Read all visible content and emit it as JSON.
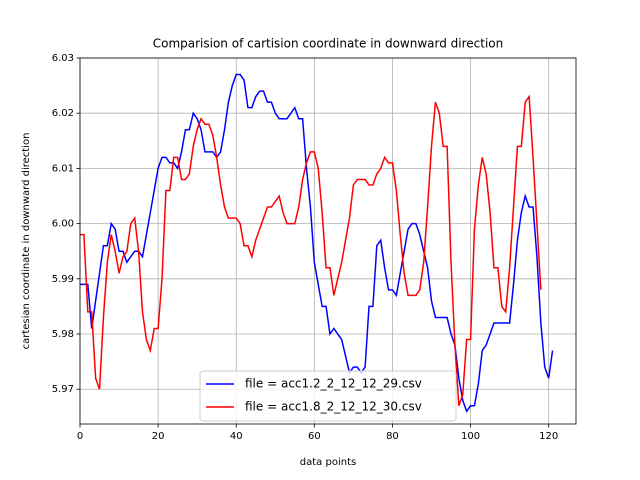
{
  "chart_data": {
    "type": "line",
    "title": "Comparision of cartision coordinate in downward direction",
    "x_label": "data points",
    "y_label": "cartesian coordinate in downward direction",
    "xlim": [
      0,
      127
    ],
    "ylim": [
      5.9637,
      6.03
    ],
    "xticks": [
      0,
      20,
      40,
      60,
      80,
      100,
      120
    ],
    "yticks": [
      5.97,
      5.98,
      5.99,
      {
        "value": 6.0,
        "label": "6.00"
      },
      6.01,
      6.02,
      6.03
    ],
    "grid": true,
    "legend": "lower center",
    "series": [
      {
        "name": "file = acc1.2_2_12_12_29.csv",
        "color": "#0000ff",
        "x": [
          0,
          1,
          2,
          3,
          4,
          5,
          6,
          7,
          8,
          9,
          10,
          11,
          12,
          13,
          14,
          15,
          16,
          17,
          18,
          19,
          20,
          21,
          22,
          23,
          24,
          25,
          26,
          27,
          28,
          29,
          30,
          31,
          32,
          33,
          34,
          35,
          36,
          37,
          38,
          39,
          40,
          41,
          42,
          43,
          44,
          45,
          46,
          47,
          48,
          49,
          50,
          51,
          52,
          53,
          54,
          55,
          56,
          57,
          58,
          59,
          60,
          61,
          62,
          63,
          64,
          65,
          66,
          67,
          68,
          69,
          70,
          71,
          72,
          73,
          74,
          75,
          76,
          77,
          78,
          79,
          80,
          81,
          82,
          83,
          84,
          85,
          86,
          87,
          88,
          89,
          90,
          91,
          92,
          93,
          94,
          95,
          96,
          97,
          98,
          99,
          100,
          101,
          102,
          103,
          104,
          105,
          106,
          107,
          108,
          109,
          110,
          111,
          112,
          113,
          114,
          115,
          116,
          117,
          118,
          119,
          120,
          121
        ],
        "values": [
          5.989,
          5.989,
          5.989,
          5.981,
          5.986,
          5.991,
          5.996,
          5.996,
          6.0,
          5.999,
          5.995,
          5.995,
          5.993,
          5.994,
          5.995,
          5.995,
          5.994,
          5.998,
          6.002,
          6.006,
          6.01,
          6.012,
          6.012,
          6.011,
          6.011,
          6.01,
          6.013,
          6.017,
          6.017,
          6.02,
          6.019,
          6.017,
          6.013,
          6.013,
          6.013,
          6.012,
          6.013,
          6.017,
          6.022,
          6.025,
          6.027,
          6.027,
          6.026,
          6.021,
          6.021,
          6.023,
          6.024,
          6.024,
          6.022,
          6.022,
          6.02,
          6.019,
          6.019,
          6.019,
          6.02,
          6.021,
          6.019,
          6.019,
          6.01,
          6.003,
          5.993,
          5.989,
          5.985,
          5.985,
          5.98,
          5.981,
          5.98,
          5.979,
          5.976,
          5.973,
          5.974,
          5.974,
          5.973,
          5.974,
          5.985,
          5.985,
          5.996,
          5.997,
          5.992,
          5.988,
          5.988,
          5.987,
          5.991,
          5.995,
          5.999,
          6.0,
          6.0,
          5.998,
          5.995,
          5.992,
          5.986,
          5.983,
          5.983,
          5.983,
          5.983,
          5.98,
          5.978,
          5.972,
          5.968,
          5.966,
          5.967,
          5.967,
          5.971,
          5.977,
          5.978,
          5.98,
          5.982,
          5.982,
          5.982,
          5.982,
          5.982,
          5.989,
          5.997,
          6.002,
          6.005,
          6.003,
          6.003,
          5.994,
          5.982,
          5.974,
          5.972,
          5.977
        ]
      },
      {
        "name": "file = acc1.8_2_12_12_30.csv",
        "color": "#ff0000",
        "x": [
          0,
          1,
          2,
          3,
          4,
          5,
          6,
          7,
          8,
          9,
          10,
          11,
          12,
          13,
          14,
          15,
          16,
          17,
          18,
          19,
          20,
          21,
          22,
          23,
          24,
          25,
          26,
          27,
          28,
          29,
          30,
          31,
          32,
          33,
          34,
          35,
          36,
          37,
          38,
          39,
          40,
          41,
          42,
          43,
          44,
          45,
          46,
          47,
          48,
          49,
          50,
          51,
          52,
          53,
          54,
          55,
          56,
          57,
          58,
          59,
          60,
          61,
          62,
          63,
          64,
          65,
          66,
          67,
          68,
          69,
          70,
          71,
          72,
          73,
          74,
          75,
          76,
          77,
          78,
          79,
          80,
          81,
          82,
          83,
          84,
          85,
          86,
          87,
          88,
          89,
          90,
          91,
          92,
          93,
          94,
          95,
          96,
          97,
          98,
          99,
          100,
          101,
          102,
          103,
          104,
          105,
          106,
          107,
          108,
          109,
          110,
          111,
          112,
          113,
          114,
          115,
          116,
          117,
          118
        ],
        "values": [
          5.998,
          5.998,
          5.984,
          5.984,
          5.972,
          5.97,
          5.983,
          5.993,
          5.998,
          5.995,
          5.991,
          5.994,
          5.995,
          6.0,
          6.001,
          5.995,
          5.984,
          5.979,
          5.977,
          5.981,
          5.981,
          5.99,
          6.006,
          6.006,
          6.012,
          6.012,
          6.008,
          6.008,
          6.009,
          6.014,
          6.017,
          6.019,
          6.018,
          6.018,
          6.016,
          6.012,
          6.007,
          6.003,
          6.001,
          6.001,
          6.001,
          6.0,
          5.996,
          5.996,
          5.994,
          5.997,
          5.999,
          6.001,
          6.003,
          6.003,
          6.004,
          6.005,
          6.002,
          6.0,
          6.0,
          6.0,
          6.003,
          6.008,
          6.011,
          6.013,
          6.013,
          6.01,
          6.002,
          5.992,
          5.992,
          5.987,
          5.99,
          5.993,
          5.997,
          6.001,
          6.007,
          6.008,
          6.008,
          6.008,
          6.007,
          6.007,
          6.009,
          6.01,
          6.012,
          6.011,
          6.011,
          6.006,
          5.998,
          5.991,
          5.987,
          5.987,
          5.987,
          5.988,
          5.993,
          6.003,
          6.014,
          6.022,
          6.02,
          6.014,
          6.014,
          5.993,
          5.978,
          5.967,
          5.969,
          5.979,
          5.979,
          5.999,
          6.007,
          6.012,
          6.009,
          6.002,
          5.992,
          5.992,
          5.985,
          5.984,
          5.992,
          6.003,
          6.014,
          6.014,
          6.022,
          6.023,
          6.012,
          6.0,
          5.988
        ]
      }
    ]
  }
}
